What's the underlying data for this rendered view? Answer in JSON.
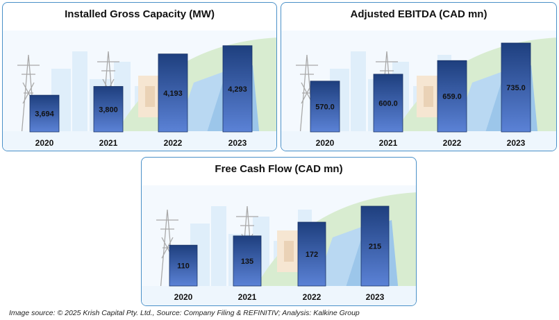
{
  "chart_data": [
    {
      "type": "bar",
      "title": "Installed Gross Capacity (MW)",
      "categories": [
        "2020",
        "2021",
        "2022",
        "2023"
      ],
      "values": [
        3694,
        3800,
        4193,
        4293
      ],
      "labels": [
        "3,694",
        "3,800",
        "4,193",
        "4,293"
      ],
      "ylim": [
        3250,
        4350
      ],
      "grid": false,
      "legend": "none"
    },
    {
      "type": "bar",
      "title": "Adjusted EBITDA (CAD mn)",
      "categories": [
        "2020",
        "2021",
        "2022",
        "2023"
      ],
      "values": [
        570.0,
        600.0,
        659.0,
        735.0
      ],
      "labels": [
        "570.0",
        "600.0",
        "659.0",
        "735.0"
      ],
      "ylim": [
        350,
        750
      ],
      "grid": false,
      "legend": "none"
    },
    {
      "type": "bar",
      "title": "Free Cash Flow (CAD mn)",
      "categories": [
        "2020",
        "2021",
        "2022",
        "2023"
      ],
      "values": [
        110,
        135,
        172,
        215
      ],
      "labels": [
        "110",
        "135",
        "172",
        "215"
      ],
      "ylim": [
        0,
        230
      ],
      "grid": false,
      "legend": "none"
    }
  ],
  "colors": {
    "bar_top": "#1e3f7e",
    "bar_bottom": "#5b82d6",
    "panel_border": "#4a90c8",
    "background_art": "#dfeefa"
  },
  "footer": {
    "source": "Image source: © 2025 Krish Capital Pty. Ltd., Source: Company Filing & REFINITIV; Analysis: Kalkine Group"
  }
}
